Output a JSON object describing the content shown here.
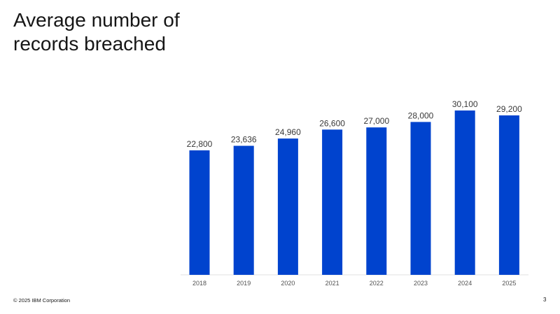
{
  "slide": {
    "title": "Average number of records breached",
    "footer": "© 2025 IBM Corporation",
    "page_number": "3"
  },
  "chart_data": {
    "type": "bar",
    "title": "Average number of records breached",
    "categories": [
      "2018",
      "2019",
      "2020",
      "2021",
      "2022",
      "2023",
      "2024",
      "2025"
    ],
    "values": [
      22800,
      23636,
      24960,
      26600,
      27000,
      28000,
      30100,
      29200
    ],
    "data_labels": [
      "22,800",
      "23,636",
      "24,960",
      "26,600",
      "27,000",
      "28,000",
      "30,100",
      "29,200"
    ],
    "xlabel": "",
    "ylabel": "",
    "ylim": [
      0,
      30100
    ],
    "grid": false,
    "legend": "none",
    "bar_color": "#0043ce",
    "axis_color": "#e0e0e0",
    "tick_label_color": "#525252",
    "data_label_color": "#393939"
  }
}
